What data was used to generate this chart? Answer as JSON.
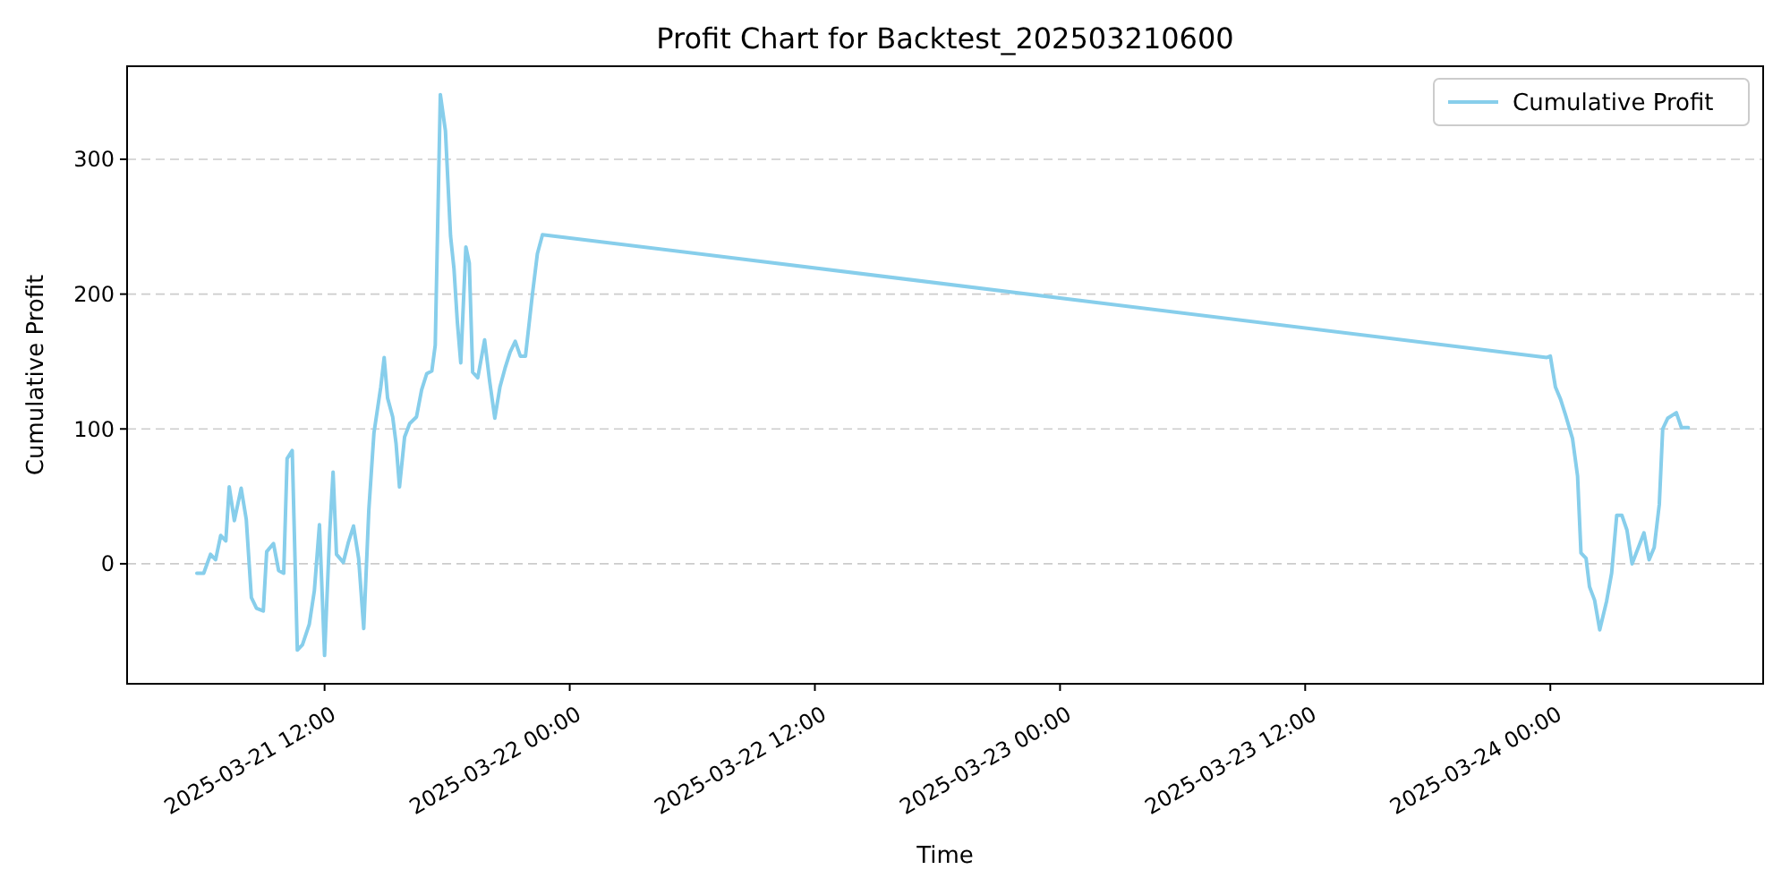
{
  "chart_data": {
    "type": "line",
    "title": "Profit Chart for Backtest_202503210600",
    "xlabel": "Time",
    "ylabel": "Cumulative Profit",
    "x": [
      "2025-03-21T05:45",
      "2025-03-21T06:05",
      "2025-03-21T06:25",
      "2025-03-21T06:40",
      "2025-03-21T06:55",
      "2025-03-21T07:10",
      "2025-03-21T07:20",
      "2025-03-21T07:35",
      "2025-03-21T07:55",
      "2025-03-21T08:10",
      "2025-03-21T08:25",
      "2025-03-21T08:40",
      "2025-03-21T09:00",
      "2025-03-21T09:10",
      "2025-03-21T09:30",
      "2025-03-21T09:45",
      "2025-03-21T10:00",
      "2025-03-21T10:10",
      "2025-03-21T10:25",
      "2025-03-21T10:40",
      "2025-03-21T10:55",
      "2025-03-21T11:15",
      "2025-03-21T11:30",
      "2025-03-21T11:45",
      "2025-03-21T12:00",
      "2025-03-21T12:15",
      "2025-03-21T12:25",
      "2025-03-21T12:35",
      "2025-03-21T12:55",
      "2025-03-21T13:10",
      "2025-03-21T13:25",
      "2025-03-21T13:40",
      "2025-03-21T13:55",
      "2025-03-21T14:10",
      "2025-03-21T14:25",
      "2025-03-21T14:45",
      "2025-03-21T14:55",
      "2025-03-21T15:05",
      "2025-03-21T15:20",
      "2025-03-21T15:30",
      "2025-03-21T15:40",
      "2025-03-21T15:55",
      "2025-03-21T16:10",
      "2025-03-21T16:30",
      "2025-03-21T16:45",
      "2025-03-21T17:00",
      "2025-03-21T17:15",
      "2025-03-21T17:25",
      "2025-03-21T17:40",
      "2025-03-21T17:55",
      "2025-03-21T18:10",
      "2025-03-21T18:20",
      "2025-03-21T18:30",
      "2025-03-21T18:40",
      "2025-03-21T18:55",
      "2025-03-21T19:05",
      "2025-03-21T19:15",
      "2025-03-21T19:30",
      "2025-03-21T19:50",
      "2025-03-21T20:05",
      "2025-03-21T20:20",
      "2025-03-21T20:35",
      "2025-03-21T20:50",
      "2025-03-21T21:05",
      "2025-03-21T21:20",
      "2025-03-21T21:35",
      "2025-03-21T21:50",
      "2025-03-21T22:10",
      "2025-03-21T22:25",
      "2025-03-21T22:40",
      "2025-03-23T23:50",
      "2025-03-24T00:00",
      "2025-03-24T00:15",
      "2025-03-24T00:30",
      "2025-03-24T00:45",
      "2025-03-24T01:05",
      "2025-03-24T01:20",
      "2025-03-24T01:30",
      "2025-03-24T01:45",
      "2025-03-24T01:55",
      "2025-03-24T02:10",
      "2025-03-24T02:25",
      "2025-03-24T02:45",
      "2025-03-24T03:00",
      "2025-03-24T03:15",
      "2025-03-24T03:30",
      "2025-03-24T03:45",
      "2025-03-24T04:00",
      "2025-03-24T04:20",
      "2025-03-24T04:35",
      "2025-03-24T04:50",
      "2025-03-24T05:05",
      "2025-03-24T05:20",
      "2025-03-24T05:30",
      "2025-03-24T05:45",
      "2025-03-24T06:10",
      "2025-03-24T06:25",
      "2025-03-24T06:45"
    ],
    "series": [
      {
        "name": "Cumulative Profit",
        "color": "#87ceeb",
        "values": [
          -7,
          -7,
          7,
          3,
          21,
          17,
          57,
          32,
          56,
          33,
          -25,
          -33,
          -35,
          9,
          15,
          -5,
          -7,
          78,
          84,
          -64,
          -60,
          -45,
          -20,
          29,
          -68,
          23,
          68,
          7,
          1,
          16,
          28,
          4,
          -48,
          40,
          97,
          131,
          153,
          123,
          109,
          89,
          57,
          94,
          104,
          109,
          129,
          141,
          143,
          162,
          348,
          321,
          243,
          219,
          179,
          149,
          235,
          223,
          142,
          138,
          166,
          135,
          108,
          131,
          145,
          157,
          165,
          154,
          154,
          199,
          230,
          244,
          153,
          154,
          131,
          122,
          110,
          93,
          65,
          8,
          4,
          -17,
          -27,
          -49,
          -28,
          -7,
          36,
          36,
          25,
          0,
          13,
          23,
          3,
          12,
          44,
          100,
          108,
          112,
          101,
          101
        ]
      }
    ],
    "xlim": [
      "2025-03-21T02:20",
      "2025-03-24T10:25"
    ],
    "xticks": [
      {
        "value": "2025-03-21T12:00",
        "label": "2025-03-21 12:00"
      },
      {
        "value": "2025-03-22T00:00",
        "label": "2025-03-22 00:00"
      },
      {
        "value": "2025-03-22T12:00",
        "label": "2025-03-22 12:00"
      },
      {
        "value": "2025-03-23T00:00",
        "label": "2025-03-23 00:00"
      },
      {
        "value": "2025-03-23T12:00",
        "label": "2025-03-23 12:00"
      },
      {
        "value": "2025-03-24T00:00",
        "label": "2025-03-24 00:00"
      }
    ],
    "ylim": [
      -89,
      369
    ],
    "yticks": [
      0,
      100,
      200,
      300
    ],
    "grid": "y",
    "legend": "top right",
    "line_style": "solid",
    "marker": "none"
  }
}
